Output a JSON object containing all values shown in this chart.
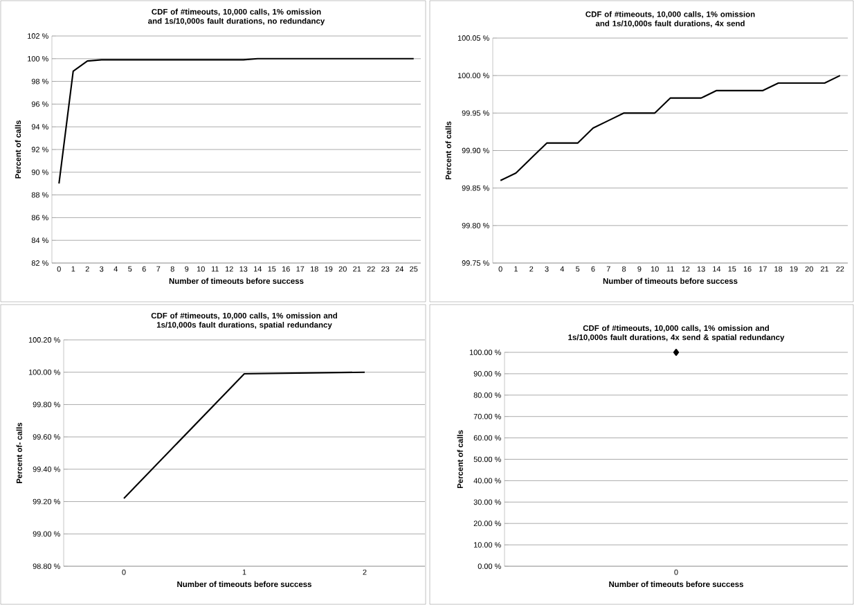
{
  "chart_data": [
    {
      "type": "line",
      "title": "CDF of #timeouts, 10,000 calls, 1% omission and 1s/10,000s fault durations, no redundancy",
      "xlabel": "Number of timeouts before success",
      "ylabel": "Percent of calls",
      "categories": [
        "0",
        "1",
        "2",
        "3",
        "4",
        "5",
        "6",
        "7",
        "8",
        "9",
        "10",
        "11",
        "12",
        "13",
        "14",
        "15",
        "16",
        "17",
        "18",
        "19",
        "20",
        "21",
        "22",
        "23",
        "24",
        "25"
      ],
      "values": [
        89,
        98.9,
        99.8,
        99.9,
        99.9,
        99.9,
        99.9,
        99.9,
        99.9,
        99.9,
        99.9,
        99.9,
        99.9,
        99.9,
        100,
        100,
        100,
        100,
        100,
        100,
        100,
        100,
        100,
        100,
        100,
        100
      ],
      "color": "#000000",
      "ylim": [
        82,
        102
      ],
      "yticks": [
        {
          "value": 82,
          "label": "82 %"
        },
        {
          "value": 84,
          "label": "84 %"
        },
        {
          "value": 86,
          "label": "86 %"
        },
        {
          "value": 88,
          "label": "88 %"
        },
        {
          "value": 90,
          "label": "90 %"
        },
        {
          "value": 92,
          "label": "92 %"
        },
        {
          "value": 94,
          "label": "94 %"
        },
        {
          "value": 96,
          "label": "96 %"
        },
        {
          "value": 98,
          "label": "98 %"
        },
        {
          "value": 100,
          "label": "100 %"
        },
        {
          "value": 102,
          "label": "102 %"
        }
      ],
      "grid": "y",
      "marker": "none"
    },
    {
      "type": "line",
      "title": "CDF of #timeouts, 10,000 calls, 1% omission and 1s/10,000s fault durations, 4x send",
      "xlabel": "Number of timeouts before success",
      "ylabel": "Percent of calls",
      "categories": [
        "0",
        "1",
        "2",
        "3",
        "4",
        "5",
        "6",
        "7",
        "8",
        "9",
        "10",
        "11",
        "12",
        "13",
        "14",
        "15",
        "16",
        "17",
        "18",
        "19",
        "20",
        "21",
        "22"
      ],
      "values": [
        99.86,
        99.87,
        99.89,
        99.91,
        99.91,
        99.91,
        99.93,
        99.94,
        99.95,
        99.95,
        99.95,
        99.97,
        99.97,
        99.97,
        99.98,
        99.98,
        99.98,
        99.98,
        99.99,
        99.99,
        99.99,
        99.99,
        100
      ],
      "color": "#000000",
      "ylim": [
        99.75,
        100.05
      ],
      "yticks": [
        {
          "value": 99.75,
          "label": "99.75 %"
        },
        {
          "value": 99.8,
          "label": "99.80 %"
        },
        {
          "value": 99.85,
          "label": "99.85 %"
        },
        {
          "value": 99.9,
          "label": "99.90 %"
        },
        {
          "value": 99.95,
          "label": "99.95 %"
        },
        {
          "value": 100,
          "label": "100.00 %"
        },
        {
          "value": 100.05,
          "label": "100.05 %"
        }
      ],
      "grid": "y",
      "marker": "none"
    },
    {
      "type": "line",
      "title": "CDF of #timeouts, 10,000 calls, 1% omission and 1s/10,000s fault durations, spatial redundancy",
      "xlabel": "Number of timeouts before success",
      "ylabel": "Percent of- calls",
      "categories": [
        "0",
        "1",
        "2"
      ],
      "values": [
        99.22,
        99.99,
        100
      ],
      "color": "#000000",
      "ylim": [
        98.8,
        100.2
      ],
      "yticks": [
        {
          "value": 98.8,
          "label": "98.80 %"
        },
        {
          "value": 99,
          "label": "99.00 %"
        },
        {
          "value": 99.2,
          "label": "99.20 %"
        },
        {
          "value": 99.4,
          "label": "99.40 %"
        },
        {
          "value": 99.6,
          "label": "99.60 %"
        },
        {
          "value": 99.8,
          "label": "99.80 %"
        },
        {
          "value": 100,
          "label": "100.00 %"
        },
        {
          "value": 100.2,
          "label": "100.20 %"
        }
      ],
      "grid": "y",
      "marker": "none"
    },
    {
      "type": "line",
      "title": "CDF of #timeouts, 10,000 calls, 1% omission and 1s/10,000s fault durations, 4x send & spatial redundancy",
      "xlabel": "Number of timeouts before success",
      "ylabel": "Percent of calls",
      "categories": [
        "0"
      ],
      "values": [
        100
      ],
      "color": "#000000",
      "ylim": [
        0,
        100
      ],
      "yticks": [
        {
          "value": 0,
          "label": "0.00 %"
        },
        {
          "value": 10,
          "label": "10.00 %"
        },
        {
          "value": 20,
          "label": "20.00 %"
        },
        {
          "value": 30,
          "label": "30.00 %"
        },
        {
          "value": 40,
          "label": "40.00 %"
        },
        {
          "value": 50,
          "label": "50.00 %"
        },
        {
          "value": 60,
          "label": "60.00 %"
        },
        {
          "value": 70,
          "label": "70.00 %"
        },
        {
          "value": 80,
          "label": "80.00 %"
        },
        {
          "value": 90,
          "label": "90.00 %"
        },
        {
          "value": 100,
          "label": "100.00 %"
        }
      ],
      "grid": "y",
      "marker": "diamond"
    }
  ]
}
